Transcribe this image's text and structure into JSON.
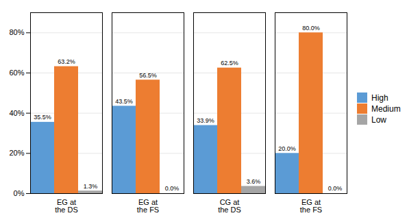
{
  "chart_data": {
    "type": "bar",
    "categories": [
      "EG at\nthe DS",
      "EG at\nthe FS",
      "CG at\nthe DS",
      "EG at\nthe FS"
    ],
    "series": [
      {
        "name": "High",
        "color": "#5B9BD5",
        "values": [
          35.5,
          43.5,
          33.9,
          20.0
        ],
        "value_labels": [
          "35.5%",
          "43.5%",
          "33.9%",
          "20.0%"
        ]
      },
      {
        "name": "Medium",
        "color": "#ED7D31",
        "values": [
          63.2,
          56.5,
          62.5,
          80.0
        ],
        "value_labels": [
          "63.2%",
          "56.5%",
          "62.5%",
          "80.0%"
        ]
      },
      {
        "name": "Low",
        "color": "#A5A5A5",
        "values": [
          1.3,
          0.0,
          3.6,
          0.0
        ],
        "value_labels": [
          "1.3%",
          "0.0%",
          "3.6%",
          "0.0%"
        ]
      }
    ],
    "ylim": [
      0,
      90
    ],
    "yticks": [
      {
        "value": 0,
        "label": "0%"
      },
      {
        "value": 20,
        "label": "20%"
      },
      {
        "value": 40,
        "label": "40%"
      },
      {
        "value": 60,
        "label": "60%"
      },
      {
        "value": 80,
        "label": "80%"
      }
    ],
    "grid": true,
    "data_labels": true,
    "legend": "right"
  }
}
